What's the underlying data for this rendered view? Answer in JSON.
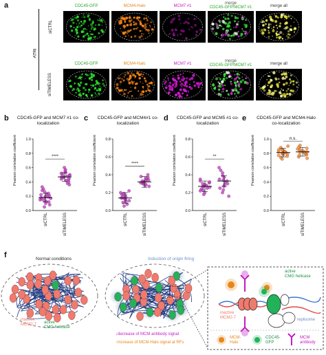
{
  "panel_a": {
    "letter": "a",
    "side_label": "ATRi",
    "rows": [
      {
        "label": "siCTRL",
        "channels": [
          {
            "text": "CDC45-GFP",
            "color": "#2aa52a"
          },
          {
            "text": "MCM4-Halo",
            "color": "#e8861a"
          },
          {
            "text": "MCM7 #1",
            "color": "#c21bc2"
          },
          {
            "text": "merge",
            "text2": "CDC45-GFP/MCM7 #1",
            "color": "#2aa52a"
          },
          {
            "text": "merge all",
            "color": "#333333"
          }
        ]
      },
      {
        "label": "siTIMELESS",
        "channels": [
          {
            "text": "CDC45-GFP",
            "color": "#2aa52a"
          },
          {
            "text": "MCM4-Halo",
            "color": "#e8861a"
          },
          {
            "text": "MCM7 #1",
            "color": "#c21bc2"
          },
          {
            "text": "merge",
            "text2": "CDC45-GFP/MCM7 #1",
            "color": "#2aa52a"
          },
          {
            "text": "merge all",
            "color": "#333333"
          }
        ]
      }
    ]
  },
  "chart_data": [
    {
      "type": "scatter",
      "letter": "b",
      "title": "CDC45-GFP and MCM7 #1 co-localization",
      "ylabel": "Pearson correlation coefficient",
      "ylim": [
        0,
        1
      ],
      "yticks": [
        0,
        0.2,
        0.4,
        0.6,
        0.8,
        1.0
      ],
      "categories": [
        "siCTRL",
        "siTIMELESS"
      ],
      "color": "#b83db8",
      "significance": "****",
      "means": [
        0.18,
        0.47
      ],
      "series": [
        {
          "values": [
            0.05,
            0.08,
            0.1,
            0.12,
            0.13,
            0.14,
            0.15,
            0.16,
            0.17,
            0.18,
            0.18,
            0.19,
            0.2,
            0.21,
            0.22,
            0.23,
            0.24,
            0.26,
            0.28,
            0.3,
            0.33
          ]
        },
        {
          "values": [
            0.36,
            0.38,
            0.4,
            0.42,
            0.43,
            0.44,
            0.45,
            0.46,
            0.47,
            0.47,
            0.48,
            0.49,
            0.5,
            0.51,
            0.52,
            0.53,
            0.55,
            0.57,
            0.6
          ]
        }
      ]
    },
    {
      "type": "scatter",
      "letter": "c",
      "title": "CDC45-GFP and MCM4#1 co-localization",
      "ylabel": "Pearson correlation coefficient",
      "ylim": [
        0,
        0.8
      ],
      "yticks": [
        0,
        0.2,
        0.4,
        0.6,
        0.8
      ],
      "categories": [
        "siCTRL",
        "siTIMELESS"
      ],
      "color": "#b83db8",
      "significance": "****",
      "means": [
        0.14,
        0.32
      ],
      "series": [
        {
          "values": [
            0.05,
            0.07,
            0.09,
            0.1,
            0.11,
            0.12,
            0.13,
            0.14,
            0.14,
            0.15,
            0.16,
            0.17,
            0.18,
            0.19,
            0.2,
            0.22
          ]
        },
        {
          "values": [
            0.27,
            0.28,
            0.29,
            0.3,
            0.31,
            0.31,
            0.32,
            0.32,
            0.33,
            0.33,
            0.34,
            0.35,
            0.36,
            0.37,
            0.38,
            0.4
          ]
        }
      ]
    },
    {
      "type": "scatter",
      "letter": "d",
      "title": "CDC45-GFP and MCM5 #1 co-localization",
      "ylabel": "Pearson correlation coefficient",
      "ylim": [
        0,
        0.8
      ],
      "yticks": [
        0,
        0.2,
        0.4,
        0.6,
        0.8
      ],
      "categories": [
        "siCTRL",
        "siTIMELESS"
      ],
      "color": "#b83db8",
      "significance": "**",
      "means": [
        0.27,
        0.33
      ],
      "series": [
        {
          "values": [
            0.18,
            0.2,
            0.22,
            0.23,
            0.24,
            0.25,
            0.26,
            0.27,
            0.27,
            0.28,
            0.29,
            0.3,
            0.31,
            0.32,
            0.33,
            0.35
          ]
        },
        {
          "values": [
            0.16,
            0.2,
            0.23,
            0.25,
            0.27,
            0.29,
            0.3,
            0.32,
            0.33,
            0.34,
            0.35,
            0.37,
            0.39,
            0.42,
            0.45,
            0.48
          ]
        }
      ]
    },
    {
      "type": "scatter",
      "letter": "e",
      "title": "CDC45-GFP and MCM4-Halo co-localization",
      "ylabel": "Pearson correlation coefficient",
      "ylim": [
        0,
        1
      ],
      "yticks": [
        0,
        0.2,
        0.4,
        0.6,
        0.8,
        1.0
      ],
      "categories": [
        "siCTRL",
        "siTIMELESS"
      ],
      "color": "#f08a1c",
      "significance": "n.s.",
      "means": [
        0.81,
        0.82
      ],
      "series": [
        {
          "values": [
            0.72,
            0.74,
            0.76,
            0.77,
            0.78,
            0.79,
            0.8,
            0.8,
            0.81,
            0.81,
            0.82,
            0.82,
            0.83,
            0.84,
            0.85,
            0.86,
            0.88,
            0.9
          ]
        },
        {
          "values": [
            0.73,
            0.75,
            0.77,
            0.78,
            0.79,
            0.8,
            0.81,
            0.82,
            0.82,
            0.83,
            0.84,
            0.85,
            0.86,
            0.87,
            0.89,
            0.91
          ]
        }
      ]
    }
  ],
  "panel_f": {
    "letter": "f",
    "left_title": "Normal conditions",
    "middle_title": "Induction of origin firing",
    "inactive_label": "inactive\nMCM2-7",
    "active_label": "active\nCMG helicase",
    "decrease_text": "↓decrease of MCM antibody signal",
    "increase_text": "↑increase of MCM-Halo signal at RFs",
    "zoom_active": "active\nCMG helicase",
    "zoom_inactive": "inactive\nMCM2-7",
    "replisome": "replisome",
    "legend": [
      {
        "text": "MCM-\nHalo",
        "color": "#e8861a"
      },
      {
        "text": "CDC45-\nGFP",
        "color": "#2aa52a"
      },
      {
        "text": "MCM\nantibody",
        "color": "#c21bc2"
      }
    ],
    "colors": {
      "inactive": "#ef7a6e",
      "active": "#22b35a",
      "chromatin": "#1f3a80",
      "glow": "#9fb6dc",
      "halo": "#e8861a",
      "antibody": "#c21bc2"
    }
  }
}
